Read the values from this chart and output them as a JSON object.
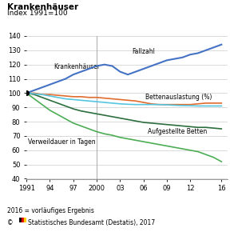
{
  "title": "Krankenhäuser",
  "subtitle": "Index 1991=100",
  "years": [
    1991,
    1992,
    1993,
    1994,
    1995,
    1996,
    1997,
    1998,
    1999,
    2000,
    2001,
    2002,
    2003,
    2004,
    2005,
    2006,
    2007,
    2008,
    2009,
    2010,
    2011,
    2012,
    2013,
    2014,
    2015,
    2016
  ],
  "fallzahl": [
    100,
    102,
    104,
    106,
    108,
    110,
    113,
    115,
    117,
    119,
    120,
    119,
    115,
    113,
    115,
    117,
    119,
    121,
    123,
    124,
    125,
    127,
    128,
    130,
    132,
    134
  ],
  "krankenhaeuser": [
    100,
    99.5,
    99,
    98,
    97,
    96,
    95.5,
    95,
    94.5,
    94,
    93.5,
    93,
    92.5,
    92.2,
    92,
    92,
    92,
    92,
    91.8,
    91.5,
    91.3,
    91.2,
    91,
    91,
    91,
    91
  ],
  "bettenauslastung": [
    100,
    100,
    99,
    99,
    98.5,
    98,
    97.5,
    97.5,
    97,
    97,
    96.5,
    96,
    95.5,
    95,
    94.5,
    93.5,
    92.5,
    92,
    92,
    92,
    92,
    92,
    92.5,
    93,
    93,
    93
  ],
  "aufgestellte_betten": [
    100,
    99,
    97,
    95,
    93,
    91,
    89,
    87.5,
    86.5,
    85.5,
    84.5,
    83.5,
    82.5,
    81.5,
    80.5,
    79.5,
    79,
    78.5,
    78,
    77.5,
    77,
    76.5,
    76,
    76,
    75.5,
    75
  ],
  "verweildauer": [
    100,
    96,
    92,
    88,
    85,
    82,
    79,
    77,
    75,
    73,
    71.5,
    70.5,
    69,
    68,
    67,
    66,
    65,
    64,
    63,
    62,
    61,
    60,
    59,
    57,
    55,
    52
  ],
  "color_fallzahl": "#4472c4",
  "color_krankenhaeuser": "#1f4e79",
  "color_bettenauslastung": "#56c5e0",
  "color_aufgestellte_betten": "#e06c2e",
  "color_verweildauer": "#4cad55",
  "footnote1": "2016 = vorläufiges Ergebnis",
  "xticks": [
    1991,
    1994,
    1997,
    2000,
    2003,
    2006,
    2009,
    2012,
    2016
  ],
  "xlabels": [
    "1991",
    "94",
    "97",
    "2000",
    "03",
    "06",
    "09",
    "12",
    "16"
  ],
  "ylim": [
    40,
    140
  ],
  "yticks": [
    40,
    50,
    60,
    70,
    80,
    90,
    100,
    110,
    120,
    130,
    140
  ],
  "grid_color": "#cccccc",
  "vline_color": "#aaaaaa"
}
